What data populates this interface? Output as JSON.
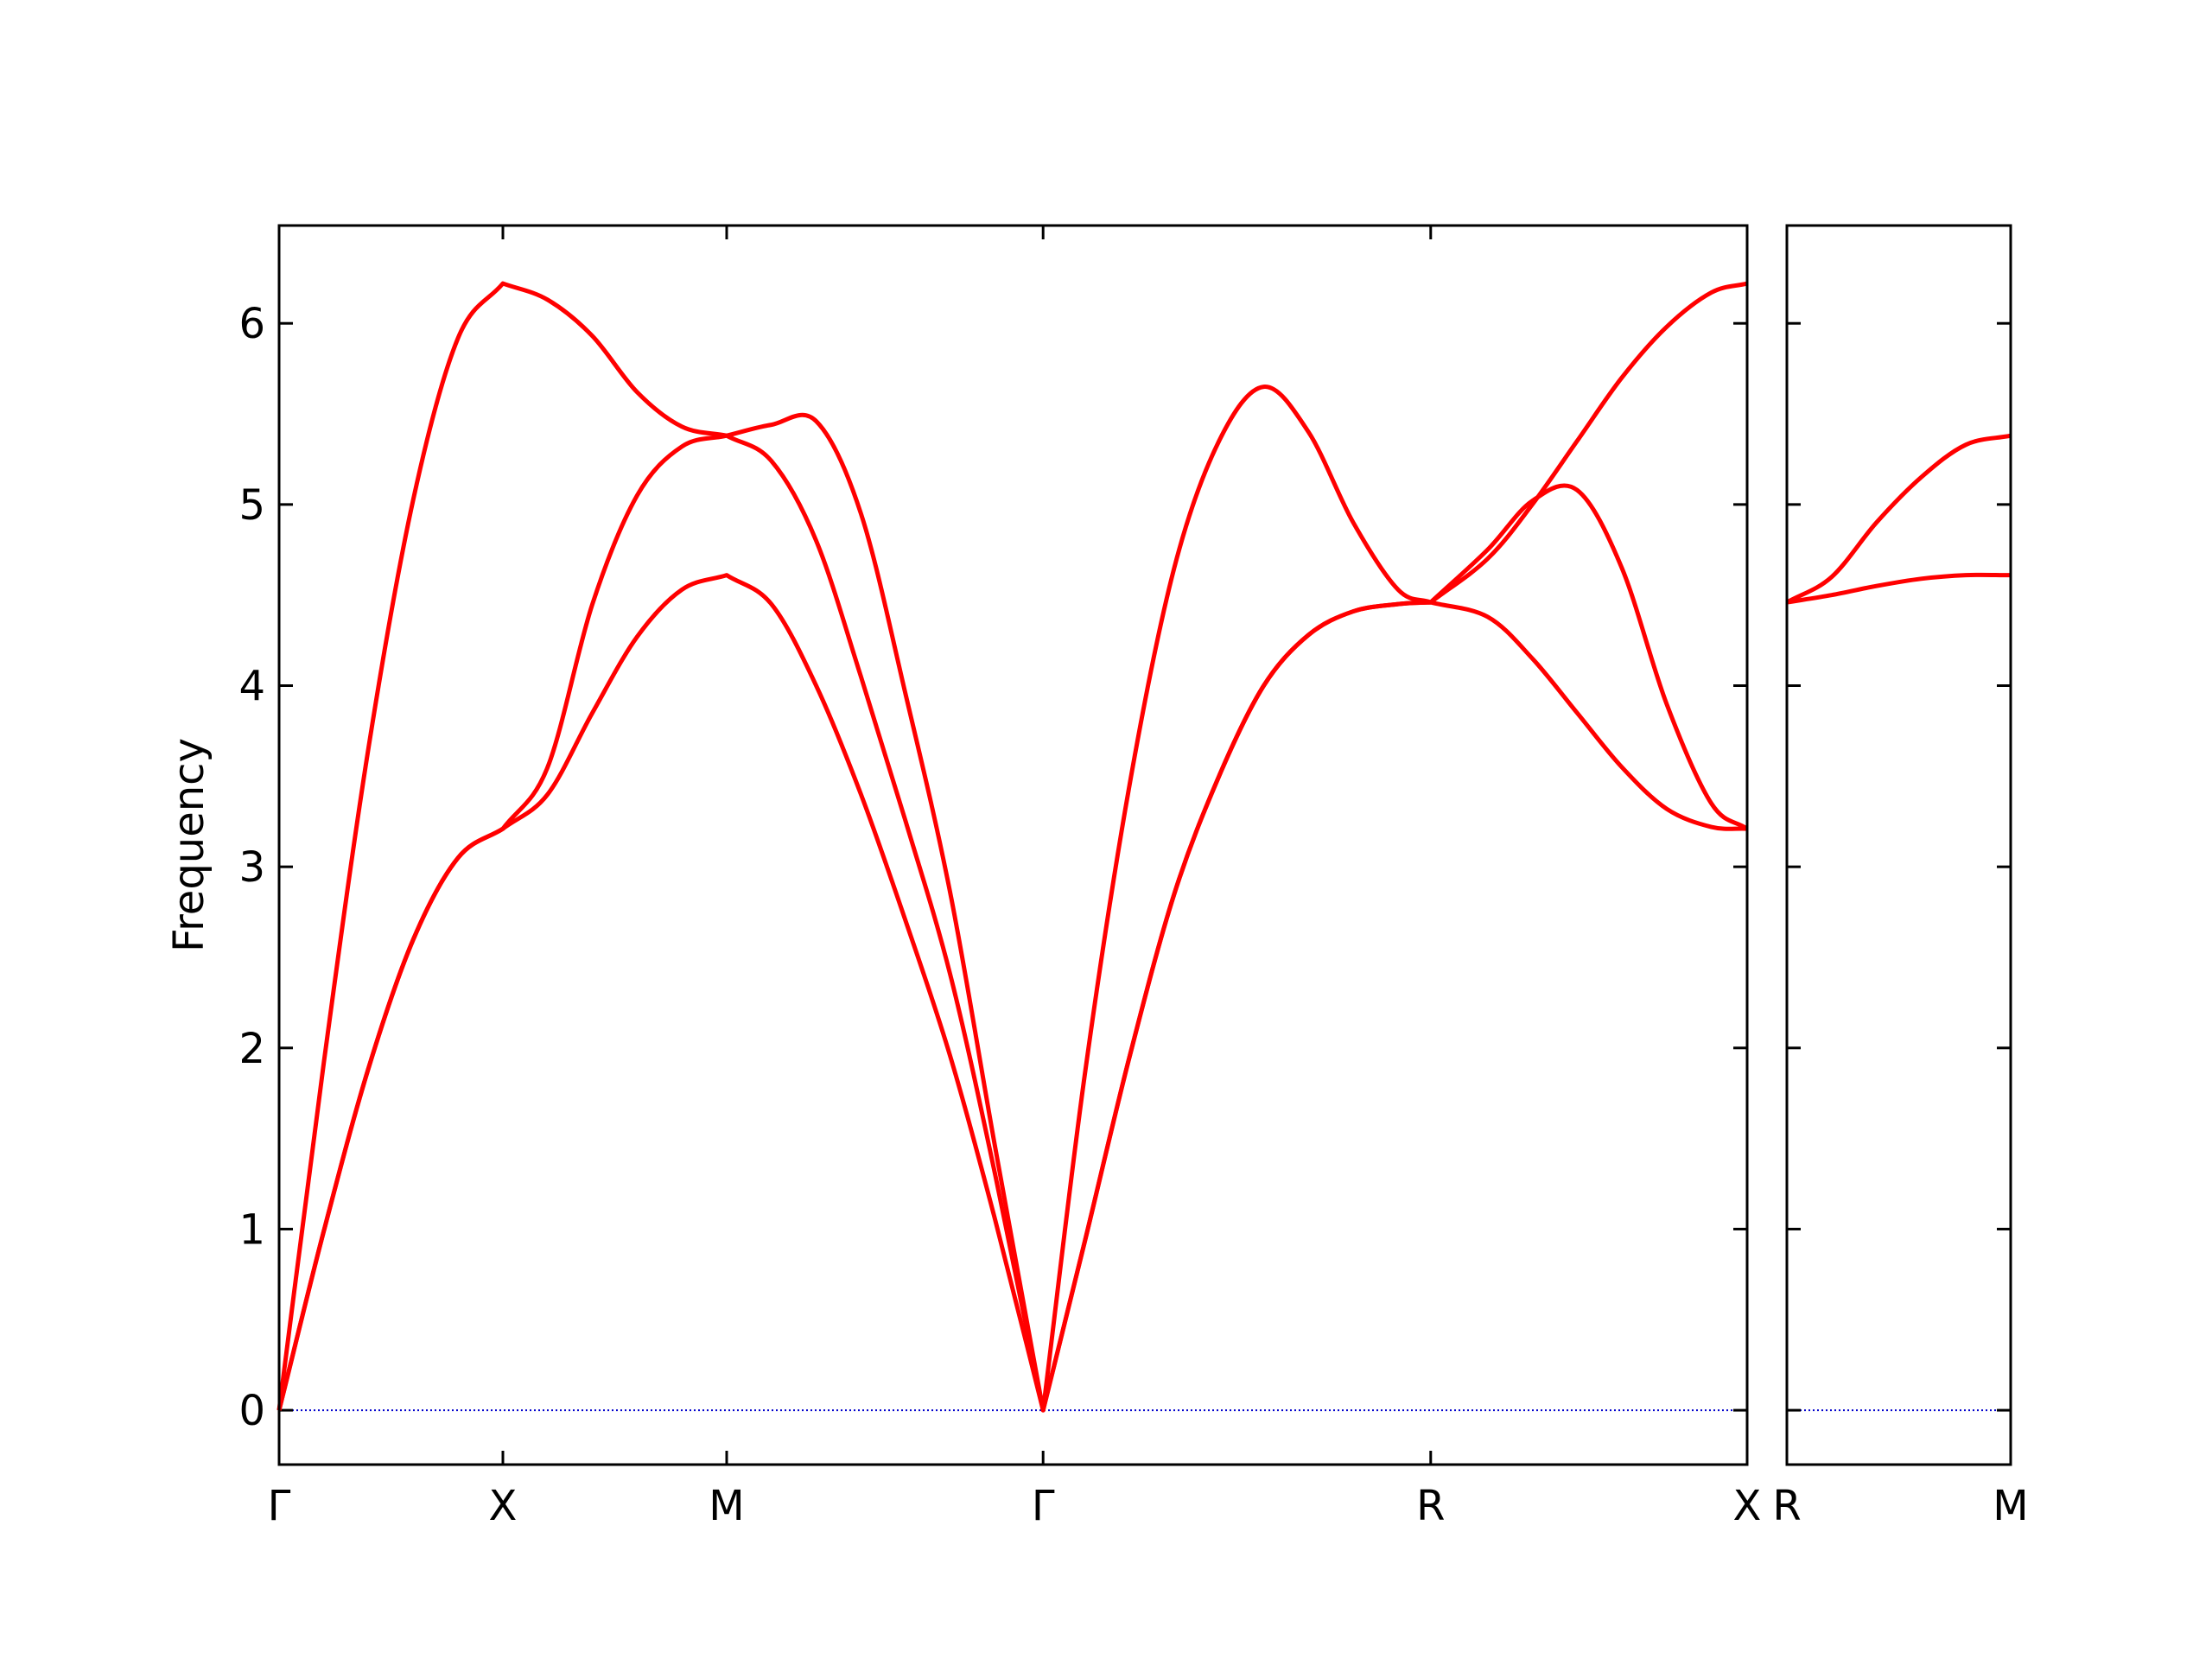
{
  "chart_data": [
    {
      "type": "line",
      "ylabel": "Frequency",
      "x": [
        0,
        0.1,
        0.2,
        0.3,
        0.4,
        0.5,
        0.6,
        0.7,
        0.8,
        0.9,
        1.0,
        1.1,
        1.2,
        1.3,
        1.4,
        1.5,
        1.6,
        1.707,
        1.8,
        1.9,
        2.0,
        2.1,
        2.2,
        2.3,
        2.4,
        2.5,
        2.573,
        2.7,
        2.8,
        2.9,
        3.0,
        3.1,
        3.2,
        3.28
      ],
      "xlim": [
        0,
        3.28
      ],
      "xticks": [
        {
          "value": 0,
          "label": "Γ"
        },
        {
          "value": 0.5,
          "label": "X"
        },
        {
          "value": 1.0,
          "label": "M"
        },
        {
          "value": 1.707,
          "label": "Γ"
        },
        {
          "value": 2.573,
          "label": "R"
        },
        {
          "value": 3.28,
          "label": "X"
        }
      ],
      "ylim": [
        -0.3,
        6.54
      ],
      "yticks": [
        0,
        1,
        2,
        3,
        4,
        5,
        6
      ],
      "ytick_labels": true,
      "zero_line": true,
      "zero_line_color": "#0000cc",
      "series": [
        {
          "color": "#ff0000",
          "values": [
            0,
            0.99,
            1.89,
            2.6,
            3.05,
            3.21,
            3.4,
            3.85,
            4.27,
            4.53,
            4.61,
            4.45,
            4.0,
            3.4,
            2.7,
            1.95,
            1.05,
            0,
            0.93,
            1.95,
            2.85,
            3.5,
            4.0,
            4.28,
            4.41,
            4.45,
            4.46,
            4.38,
            4.15,
            3.85,
            3.55,
            3.32,
            3.22,
            3.21
          ]
        },
        {
          "color": "#ff0000",
          "values": [
            0,
            0.99,
            1.89,
            2.6,
            3.05,
            3.21,
            3.55,
            4.45,
            5.05,
            5.32,
            5.38,
            5.24,
            4.8,
            4.05,
            3.25,
            2.4,
            1.3,
            0,
            0.93,
            1.95,
            2.85,
            3.5,
            4.0,
            4.28,
            4.41,
            4.45,
            4.46,
            4.75,
            5.02,
            5.08,
            4.65,
            3.9,
            3.35,
            3.21
          ]
        },
        {
          "color": "#ff0000",
          "values": [
            0,
            1.92,
            3.66,
            5.03,
            5.92,
            6.22,
            6.13,
            5.93,
            5.62,
            5.43,
            5.38,
            5.44,
            5.46,
            4.95,
            3.95,
            2.85,
            1.45,
            0,
            1.85,
            3.45,
            4.65,
            5.35,
            5.65,
            5.4,
            4.9,
            4.53,
            4.46,
            4.7,
            5.0,
            5.35,
            5.7,
            5.98,
            6.17,
            6.22
          ]
        }
      ]
    },
    {
      "type": "line",
      "x": [
        0,
        0.1,
        0.2,
        0.3,
        0.4,
        0.5
      ],
      "xlim": [
        0,
        0.5
      ],
      "xticks": [
        {
          "value": 0,
          "label": "R"
        },
        {
          "value": 0.5,
          "label": "M"
        }
      ],
      "ylim": [
        -0.3,
        6.54
      ],
      "yticks": [
        0,
        1,
        2,
        3,
        4,
        5,
        6
      ],
      "ytick_labels": false,
      "zero_line": true,
      "zero_line_color": "#0000cc",
      "series": [
        {
          "color": "#ff0000",
          "values": [
            4.46,
            4.5,
            4.55,
            4.59,
            4.61,
            4.61
          ]
        },
        {
          "color": "#ff0000",
          "values": [
            4.46,
            4.6,
            4.9,
            5.15,
            5.33,
            5.38
          ]
        }
      ]
    }
  ]
}
